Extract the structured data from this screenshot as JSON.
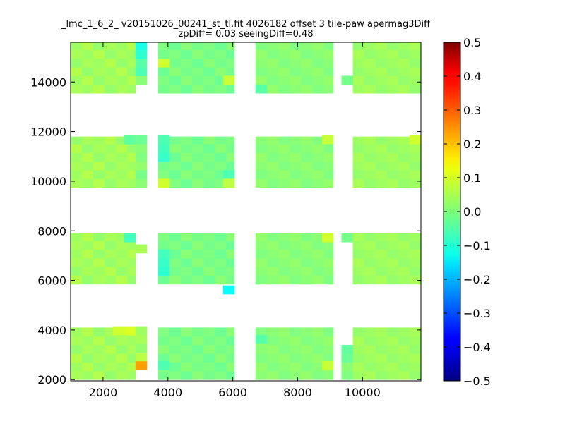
{
  "chart_data": {
    "type": "heatmap",
    "title_line1": "_lmc_1_6_2_ v20151026_00241_st_tl.fit 4026182 offset 3 tile-paw apermag3Diff",
    "title_line2": "zpDiff= 0.03 seeingDiff=0.48",
    "xlabel": "",
    "ylabel": "",
    "xlim": [
      1000,
      11800
    ],
    "ylim": [
      1950,
      15600
    ],
    "x_ticks": [
      2000,
      4000,
      6000,
      8000,
      10000
    ],
    "x_tick_labels": [
      "2000",
      "4000",
      "6000",
      "8000",
      "10000"
    ],
    "y_ticks": [
      2000,
      4000,
      6000,
      8000,
      10000,
      12000,
      14000
    ],
    "y_tick_labels": [
      "2000",
      "4000",
      "6000",
      "8000",
      "10000",
      "12000",
      "14000"
    ],
    "colorbar": {
      "colormap": "jet",
      "vmin": -0.5,
      "vmax": 0.5,
      "ticks": [
        0.5,
        0.4,
        0.3,
        0.2,
        0.1,
        0.0,
        -0.1,
        -0.2,
        -0.3,
        -0.4,
        -0.5
      ],
      "tick_labels": [
        "0.5",
        "0.4",
        "0.3",
        "0.2",
        "0.1",
        "0.0",
        "−0.1",
        "−0.2",
        "−0.3",
        "−0.4",
        "−0.5"
      ]
    },
    "grid": false,
    "cell_size": [
      350,
      350
    ],
    "detectors": {
      "columns": [
        [
          1000,
          3000
        ],
        [
          3700,
          6050
        ],
        [
          6700,
          9100
        ],
        [
          9700,
          11800
        ]
      ],
      "rows": [
        [
          2000,
          4100
        ],
        [
          5850,
          7900
        ],
        [
          9750,
          11800
        ],
        [
          13550,
          15600
        ]
      ]
    },
    "cell_values": [
      [
        [
          0.04,
          0.03,
          0.05,
          0.02,
          0.04,
          0.03,
          0.05,
          0.02,
          0.04,
          0.03,
          0.05,
          0.02,
          0.04,
          0.03
        ],
        [
          0.03,
          0.05,
          0.02,
          0.04,
          0.03,
          0.05,
          0.02,
          0.04,
          0.03,
          0.05,
          0.02,
          0.04,
          0.03,
          0.05
        ],
        [
          0.05,
          0.02,
          0.04,
          0.03,
          0.05,
          0.02,
          0.04,
          0.03,
          0.05,
          0.02,
          0.04,
          0.03,
          0.05,
          0.02
        ],
        [
          0.02,
          0.04,
          0.03,
          0.05,
          0.02,
          0.04,
          0.03,
          0.05,
          0.02,
          0.04,
          0.03,
          0.05,
          0.02,
          0.04
        ],
        [
          0.04,
          0.03,
          0.05,
          0.02,
          0.04,
          0.03,
          0.05,
          0.02,
          0.04,
          0.03,
          0.05,
          0.02,
          0.04,
          0.03
        ],
        [
          0.03,
          0.05,
          0.02,
          0.04,
          0.03,
          0.05,
          0.02,
          0.04,
          0.03,
          0.05,
          0.02,
          0.04,
          0.03,
          0.05
        ]
      ],
      [
        [
          -0.01,
          0.0,
          -0.02,
          0.01,
          -0.01,
          0.0,
          -0.02,
          0.01,
          -0.01,
          0.0,
          -0.02,
          0.01,
          -0.01,
          0.0
        ],
        [
          0.0,
          -0.02,
          0.01,
          -0.01,
          0.0,
          -0.02,
          0.01,
          -0.01,
          0.0,
          -0.02,
          0.01,
          -0.01,
          0.0,
          -0.02
        ],
        [
          -0.02,
          0.01,
          -0.01,
          0.0,
          -0.02,
          0.01,
          -0.01,
          0.0,
          -0.02,
          0.01,
          -0.01,
          0.0,
          -0.02,
          0.01
        ],
        [
          0.01,
          -0.01,
          0.0,
          -0.02,
          0.01,
          -0.01,
          0.0,
          -0.02,
          0.01,
          -0.01,
          0.0,
          -0.02,
          0.01,
          -0.01
        ],
        [
          -0.01,
          0.0,
          -0.02,
          0.01,
          -0.01,
          0.0,
          -0.02,
          0.01,
          -0.01,
          0.0,
          -0.02,
          0.01,
          -0.01,
          0.0
        ],
        [
          0.0,
          -0.02,
          0.01,
          -0.01,
          0.0,
          -0.02,
          0.01,
          -0.01,
          0.0,
          -0.02,
          0.01,
          -0.01,
          0.0,
          -0.02
        ]
      ],
      [
        [
          0.01,
          0.02,
          0.0,
          0.01,
          0.02,
          0.0,
          0.01,
          0.02,
          0.0,
          0.01,
          0.02,
          0.0,
          0.01,
          0.02
        ],
        [
          0.02,
          0.0,
          0.01,
          0.02,
          0.0,
          0.01,
          0.02,
          0.0,
          0.01,
          0.02,
          0.0,
          0.01,
          0.02,
          0.0
        ],
        [
          0.0,
          0.01,
          0.02,
          0.0,
          0.01,
          0.02,
          0.0,
          0.01,
          0.02,
          0.0,
          0.01,
          0.02,
          0.0,
          0.01
        ],
        [
          0.01,
          0.02,
          0.0,
          0.01,
          0.02,
          0.0,
          0.01,
          0.02,
          0.0,
          0.01,
          0.02,
          0.0,
          0.01,
          0.02
        ],
        [
          0.02,
          0.0,
          0.01,
          0.02,
          0.0,
          0.01,
          0.02,
          0.0,
          0.01,
          0.02,
          0.0,
          0.01,
          0.02,
          0.0
        ],
        [
          0.0,
          0.01,
          0.02,
          0.0,
          0.01,
          0.02,
          0.0,
          0.01,
          0.02,
          0.0,
          0.01,
          0.02,
          0.0,
          0.01
        ]
      ],
      [
        [
          0.03,
          0.04,
          0.02,
          0.03,
          0.04,
          0.02,
          0.03,
          0.04,
          0.02,
          0.03,
          0.04,
          0.02,
          0.03,
          0.04
        ],
        [
          0.04,
          0.02,
          0.03,
          0.04,
          0.02,
          0.03,
          0.04,
          0.02,
          0.03,
          0.04,
          0.02,
          0.03,
          0.04,
          0.02
        ],
        [
          0.02,
          0.03,
          0.04,
          0.02,
          0.03,
          0.04,
          0.02,
          0.03,
          0.04,
          0.02,
          0.03,
          0.04,
          0.02,
          0.03
        ],
        [
          0.03,
          0.04,
          0.02,
          0.03,
          0.04,
          0.02,
          0.03,
          0.04,
          0.02,
          0.03,
          0.04,
          0.02,
          0.03,
          0.04
        ],
        [
          0.04,
          0.02,
          0.03,
          0.04,
          0.02,
          0.03,
          0.04,
          0.02,
          0.03,
          0.04,
          0.02,
          0.03,
          0.04,
          0.02
        ],
        [
          0.02,
          0.03,
          0.04,
          0.02,
          0.03,
          0.04,
          0.02,
          0.03,
          0.04,
          0.02,
          0.03,
          0.04,
          0.02,
          0.03
        ]
      ]
    ],
    "extra_cells": [
      {
        "x": 3000,
        "y": 2400,
        "v": 0.22
      },
      {
        "x": 3000,
        "y": 2750,
        "v": 0.06
      },
      {
        "x": 3000,
        "y": 3100,
        "v": 0.02
      },
      {
        "x": 3000,
        "y": 3450,
        "v": 0.04
      },
      {
        "x": 3000,
        "y": 3800,
        "v": 0.03
      },
      {
        "x": 9350,
        "y": 2000,
        "v": 0.0
      },
      {
        "x": 9350,
        "y": 2350,
        "v": 0.01
      },
      {
        "x": 9350,
        "y": 2700,
        "v": -0.02
      },
      {
        "x": 9350,
        "y": 3050,
        "v": -0.03
      },
      {
        "x": 5700,
        "y": 5450,
        "v": -0.12
      },
      {
        "x": 3000,
        "y": 7100,
        "v": 0.04
      },
      {
        "x": 9350,
        "y": 7550,
        "v": -0.01
      },
      {
        "x": 3000,
        "y": 9750,
        "v": 0.01
      },
      {
        "x": 3000,
        "y": 10100,
        "v": -0.01
      },
      {
        "x": 3000,
        "y": 10450,
        "v": 0.02
      },
      {
        "x": 3000,
        "y": 10800,
        "v": 0.0
      },
      {
        "x": 3000,
        "y": 11150,
        "v": 0.01
      },
      {
        "x": 3000,
        "y": 11500,
        "v": -0.02
      },
      {
        "x": 9350,
        "y": 13900,
        "v": -0.01
      },
      {
        "x": 3000,
        "y": 13900,
        "v": 0.01
      },
      {
        "x": 3000,
        "y": 14250,
        "v": -0.05
      },
      {
        "x": 3000,
        "y": 14600,
        "v": -0.04
      },
      {
        "x": 3000,
        "y": 14950,
        "v": -0.08
      },
      {
        "x": 3000,
        "y": 15300,
        "v": -0.1
      }
    ],
    "accent_cells": [
      {
        "x": 2650,
        "y": 7550,
        "v": -0.06
      },
      {
        "x": 8750,
        "y": 7550,
        "v": 0.08
      },
      {
        "x": 3700,
        "y": 6200,
        "v": -0.08
      },
      {
        "x": 3700,
        "y": 6550,
        "v": -0.07
      },
      {
        "x": 3700,
        "y": 6900,
        "v": -0.06
      },
      {
        "x": 3700,
        "y": 10800,
        "v": -0.07
      },
      {
        "x": 3700,
        "y": 11150,
        "v": -0.06
      },
      {
        "x": 3700,
        "y": 11500,
        "v": -0.05
      },
      {
        "x": 3700,
        "y": 9750,
        "v": 0.08
      },
      {
        "x": 5700,
        "y": 10100,
        "v": -0.05
      },
      {
        "x": 5700,
        "y": 9750,
        "v": 0.06
      },
      {
        "x": 3700,
        "y": 2400,
        "v": -0.05
      },
      {
        "x": 8750,
        "y": 2400,
        "v": 0.07
      },
      {
        "x": 6700,
        "y": 3450,
        "v": -0.04
      },
      {
        "x": 2300,
        "y": 3800,
        "v": 0.08
      },
      {
        "x": 2650,
        "y": 3800,
        "v": 0.09
      },
      {
        "x": 3700,
        "y": 14600,
        "v": 0.08
      },
      {
        "x": 5700,
        "y": 13900,
        "v": 0.07
      },
      {
        "x": 6700,
        "y": 13550,
        "v": -0.04
      },
      {
        "x": 8750,
        "y": 11500,
        "v": 0.07
      },
      {
        "x": 11450,
        "y": 11500,
        "v": 0.08
      },
      {
        "x": 2650,
        "y": 11500,
        "v": -0.03
      }
    ]
  }
}
